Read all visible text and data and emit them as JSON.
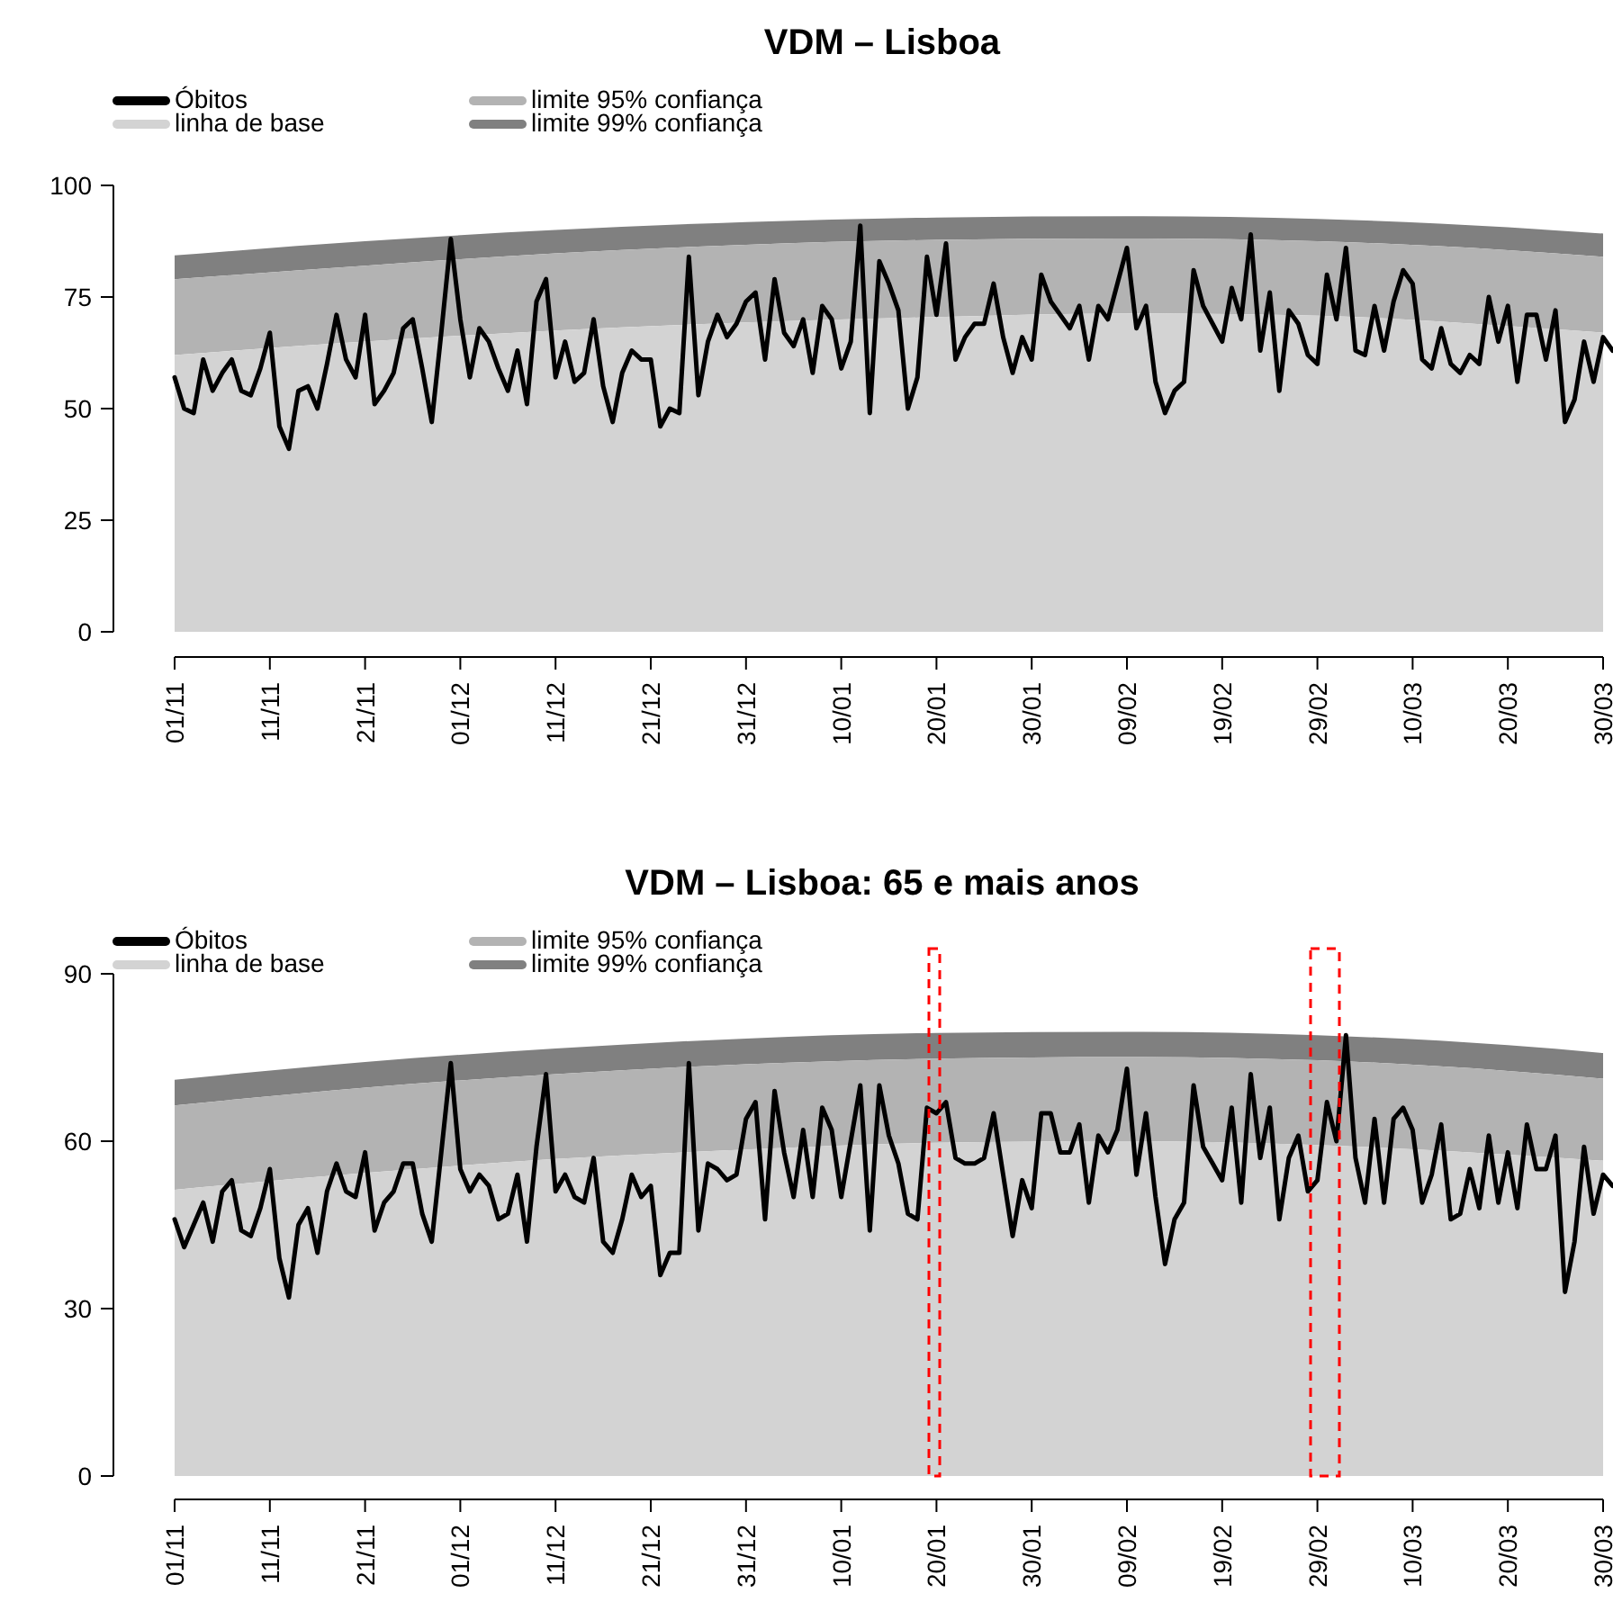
{
  "chart_data": [
    {
      "type": "line",
      "title": "VDM – Lisboa",
      "legend": "top left",
      "categories": [
        "01/11",
        null,
        null,
        null,
        null,
        null,
        null,
        null,
        null,
        null,
        "11/11",
        null,
        null,
        null,
        null,
        null,
        null,
        null,
        null,
        null,
        "21/11",
        null,
        null,
        null,
        null,
        null,
        null,
        null,
        null,
        null,
        "01/12",
        null,
        null,
        null,
        null,
        null,
        null,
        null,
        null,
        null,
        "11/12",
        null,
        null,
        null,
        null,
        null,
        null,
        null,
        null,
        null,
        "21/12",
        null,
        null,
        null,
        null,
        null,
        null,
        null,
        null,
        null,
        "31/12",
        null,
        null,
        null,
        null,
        null,
        null,
        null,
        null,
        null,
        "10/01",
        null,
        null,
        null,
        null,
        null,
        null,
        null,
        null,
        null,
        "20/01",
        null,
        null,
        null,
        null,
        null,
        null,
        null,
        null,
        null,
        "30/01",
        null,
        null,
        null,
        null,
        null,
        null,
        null,
        null,
        null,
        "09/02",
        null,
        null,
        null,
        null,
        null,
        null,
        null,
        null,
        null,
        "19/02",
        null,
        null,
        null,
        null,
        null,
        null,
        null,
        null,
        null,
        "29/02",
        null,
        null,
        null,
        null,
        null,
        null,
        null,
        null,
        null,
        "10/03",
        null,
        null,
        null,
        null,
        null,
        null,
        null,
        null,
        null,
        "20/03",
        null,
        null,
        null,
        null,
        null,
        null,
        null,
        null,
        null,
        "30/03",
        null
      ],
      "ylim": [
        0,
        100
      ],
      "yticks": [
        0,
        25,
        50,
        75,
        100
      ],
      "series": [
        {
          "name": "Óbitos",
          "color": "#000000",
          "values": [
            57,
            50,
            49,
            61,
            54,
            58,
            61,
            54,
            53,
            59,
            67,
            46,
            41,
            54,
            55,
            50,
            60,
            71,
            61,
            57,
            71,
            51,
            54,
            58,
            68,
            70,
            59,
            47,
            67,
            88,
            70,
            57,
            68,
            65,
            59,
            54,
            63,
            51,
            74,
            79,
            57,
            65,
            56,
            58,
            70,
            55,
            47,
            58,
            63,
            61,
            61,
            46,
            50,
            49,
            84,
            53,
            65,
            71,
            66,
            69,
            74,
            76,
            61,
            79,
            67,
            64,
            70,
            58,
            73,
            70,
            59,
            65,
            91,
            49,
            83,
            78,
            72,
            50,
            57,
            84,
            71,
            87,
            61,
            66,
            69,
            69,
            78,
            66,
            58,
            66,
            61,
            80,
            74,
            71,
            68,
            73,
            61,
            73,
            70,
            78,
            86,
            68,
            73,
            56,
            49,
            54,
            56,
            81,
            73,
            69,
            65,
            77,
            70,
            89,
            63,
            76,
            54,
            72,
            69,
            62,
            60,
            80,
            70,
            86,
            63,
            62,
            73,
            63,
            74,
            81,
            78,
            61,
            59,
            68,
            60,
            58,
            62,
            60,
            75,
            65,
            73,
            56,
            71,
            71,
            61,
            72,
            47,
            52,
            65,
            56,
            66,
            63
          ]
        },
        {
          "name": "linha de base",
          "type": "area",
          "color": "#d3d3d3",
          "x": [
            "01/11",
            "21/11",
            "11/12",
            "31/12",
            "20/01",
            "09/02",
            "29/02",
            "20/03",
            "30/03"
          ],
          "values": [
            62,
            65,
            67.5,
            69.3,
            70.5,
            71.3,
            70.8,
            68.5,
            67
          ]
        },
        {
          "name": "limite 95% confiança",
          "type": "area",
          "color": "#b3b3b3",
          "x": [
            "01/11",
            "21/11",
            "11/12",
            "31/12",
            "20/01",
            "09/02",
            "29/02",
            "20/03",
            "30/03"
          ],
          "values": [
            79,
            82,
            84.8,
            86.7,
            87.8,
            88.1,
            87.5,
            85.5,
            84
          ]
        },
        {
          "name": "limite 99% confiança",
          "type": "area",
          "color": "#808080",
          "x": [
            "01/11",
            "21/11",
            "11/12",
            "31/12",
            "20/01",
            "09/02",
            "29/02",
            "20/03",
            "30/03"
          ],
          "values": [
            84.3,
            87.5,
            90,
            91.8,
            92.8,
            93.1,
            92.5,
            90.6,
            89.2
          ]
        }
      ]
    },
    {
      "type": "line",
      "title": "VDM – Lisboa: 65 e mais anos",
      "legend": "top left",
      "categories": [
        "01/11",
        null,
        null,
        null,
        null,
        null,
        null,
        null,
        null,
        null,
        "11/11",
        null,
        null,
        null,
        null,
        null,
        null,
        null,
        null,
        null,
        "21/11",
        null,
        null,
        null,
        null,
        null,
        null,
        null,
        null,
        null,
        "01/12",
        null,
        null,
        null,
        null,
        null,
        null,
        null,
        null,
        null,
        "11/12",
        null,
        null,
        null,
        null,
        null,
        null,
        null,
        null,
        null,
        "21/12",
        null,
        null,
        null,
        null,
        null,
        null,
        null,
        null,
        null,
        "31/12",
        null,
        null,
        null,
        null,
        null,
        null,
        null,
        null,
        null,
        "10/01",
        null,
        null,
        null,
        null,
        null,
        null,
        null,
        null,
        null,
        "20/01",
        null,
        null,
        null,
        null,
        null,
        null,
        null,
        null,
        null,
        "30/01",
        null,
        null,
        null,
        null,
        null,
        null,
        null,
        null,
        null,
        "09/02",
        null,
        null,
        null,
        null,
        null,
        null,
        null,
        null,
        null,
        "19/02",
        null,
        null,
        null,
        null,
        null,
        null,
        null,
        null,
        null,
        "29/02",
        null,
        null,
        null,
        null,
        null,
        null,
        null,
        null,
        null,
        "10/03",
        null,
        null,
        null,
        null,
        null,
        null,
        null,
        null,
        null,
        "20/03",
        null,
        null,
        null,
        null,
        null,
        null,
        null,
        null,
        null,
        "30/03",
        null
      ],
      "ylim": [
        0,
        90
      ],
      "yticks": [
        0,
        30,
        60,
        90
      ],
      "series": [
        {
          "name": "Óbitos",
          "color": "#000000",
          "values": [
            46,
            41,
            45,
            49,
            42,
            51,
            53,
            44,
            43,
            48,
            55,
            39,
            32,
            45,
            48,
            40,
            51,
            56,
            51,
            50,
            58,
            44,
            49,
            51,
            56,
            56,
            47,
            42,
            58,
            74,
            55,
            51,
            54,
            52,
            46,
            47,
            54,
            42,
            59,
            72,
            51,
            54,
            50,
            49,
            57,
            42,
            40,
            46,
            54,
            50,
            52,
            36,
            40,
            40,
            74,
            44,
            56,
            55,
            53,
            54,
            64,
            67,
            46,
            69,
            58,
            50,
            62,
            50,
            66,
            62,
            50,
            60,
            70,
            44,
            70,
            61,
            56,
            47,
            46,
            66,
            65,
            67,
            57,
            56,
            56,
            57,
            65,
            54,
            43,
            53,
            48,
            65,
            65,
            58,
            58,
            63,
            49,
            61,
            58,
            62,
            73,
            54,
            65,
            50,
            38,
            46,
            49,
            70,
            59,
            56,
            53,
            66,
            49,
            72,
            57,
            66,
            46,
            57,
            61,
            51,
            53,
            67,
            60,
            79,
            57,
            49,
            64,
            49,
            64,
            66,
            62,
            49,
            54,
            63,
            46,
            47,
            55,
            48,
            61,
            49,
            58,
            48,
            63,
            55,
            55,
            61,
            33,
            42,
            59,
            47,
            54,
            52
          ]
        },
        {
          "name": "linha de base",
          "type": "area",
          "color": "#d3d3d3",
          "x": [
            "01/11",
            "21/11",
            "11/12",
            "31/12",
            "20/01",
            "09/02",
            "29/02",
            "20/03",
            "30/03"
          ],
          "values": [
            51.3,
            54.3,
            56.8,
            58.5,
            59.7,
            60,
            59.3,
            57.6,
            56.5
          ]
        },
        {
          "name": "limite 95% confiança",
          "type": "area",
          "color": "#b3b3b3",
          "x": [
            "01/11",
            "21/11",
            "11/12",
            "31/12",
            "20/01",
            "09/02",
            "29/02",
            "20/03",
            "30/03"
          ],
          "values": [
            66.4,
            69.6,
            72,
            73.8,
            74.8,
            75.1,
            74.5,
            72.6,
            71.2
          ]
        },
        {
          "name": "limite 99% confiança",
          "type": "area",
          "color": "#808080",
          "x": [
            "01/11",
            "21/11",
            "11/12",
            "31/12",
            "20/01",
            "09/02",
            "29/02",
            "20/03",
            "30/03"
          ],
          "values": [
            71,
            74.2,
            76.6,
            78.4,
            79.4,
            79.6,
            79,
            77.2,
            75.8
          ]
        }
      ]
    }
  ]
}
